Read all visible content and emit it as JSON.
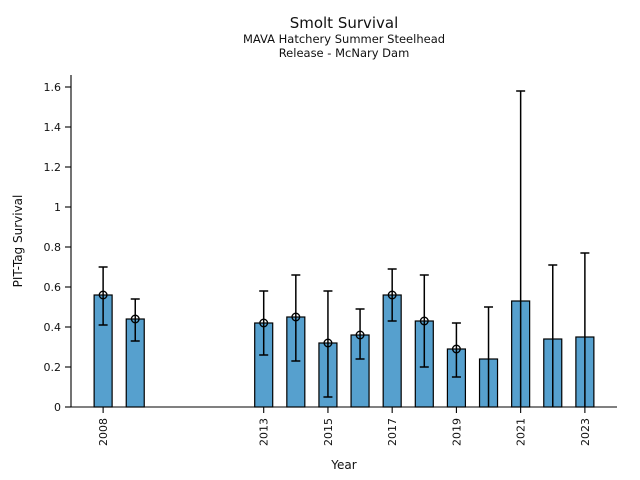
{
  "chart_data": {
    "type": "bar",
    "title": "Smolt Survival",
    "subtitle": [
      "MAVA Hatchery Summer Steelhead",
      "Release - McNary Dam"
    ],
    "xlabel": "Year",
    "ylabel": "PIT-Tag Survival",
    "xlim": [
      2007,
      2024
    ],
    "ylim": [
      0,
      1.66
    ],
    "xticks": [
      2008,
      2013,
      2015,
      2017,
      2019,
      2021,
      2023
    ],
    "yticks": [
      0,
      0.2,
      0.4,
      0.6,
      0.8,
      1,
      1.2,
      1.4,
      1.6
    ],
    "ytick_labels": [
      "0",
      "0.2",
      "0.4",
      "0.6",
      "0.8",
      "1",
      "1.2",
      "1.4",
      "1.6"
    ],
    "grid": false,
    "legend": false,
    "colors": {
      "bar_fill": "#56A0CE",
      "bar_edge": "#000000",
      "errorbar": "#000000",
      "background": "#FFFFFF"
    },
    "bars": [
      {
        "year": 2008,
        "value": 0.56,
        "err_low": 0.41,
        "err_high": 0.7,
        "marker": true
      },
      {
        "year": 2009,
        "value": 0.44,
        "err_low": 0.33,
        "err_high": 0.54,
        "marker": true
      },
      {
        "year": 2013,
        "value": 0.42,
        "err_low": 0.26,
        "err_high": 0.58,
        "marker": true
      },
      {
        "year": 2014,
        "value": 0.45,
        "err_low": 0.23,
        "err_high": 0.66,
        "marker": true
      },
      {
        "year": 2015,
        "value": 0.32,
        "err_low": 0.05,
        "err_high": 0.58,
        "marker": true
      },
      {
        "year": 2016,
        "value": 0.36,
        "err_low": 0.24,
        "err_high": 0.49,
        "marker": true
      },
      {
        "year": 2017,
        "value": 0.56,
        "err_low": 0.43,
        "err_high": 0.69,
        "marker": true
      },
      {
        "year": 2018,
        "value": 0.43,
        "err_low": 0.2,
        "err_high": 0.66,
        "marker": true
      },
      {
        "year": 2019,
        "value": 0.29,
        "err_low": 0.15,
        "err_high": 0.42,
        "marker": true
      },
      {
        "year": 2020,
        "value": 0.24,
        "err_low": 0.0,
        "err_high": 0.5,
        "marker": false
      },
      {
        "year": 2021,
        "value": 0.53,
        "err_low": 0.0,
        "err_high": 1.58,
        "marker": false
      },
      {
        "year": 2022,
        "value": 0.34,
        "err_low": 0.0,
        "err_high": 0.71,
        "marker": false
      },
      {
        "year": 2023,
        "value": 0.35,
        "err_low": 0.0,
        "err_high": 0.77,
        "marker": false
      }
    ]
  }
}
